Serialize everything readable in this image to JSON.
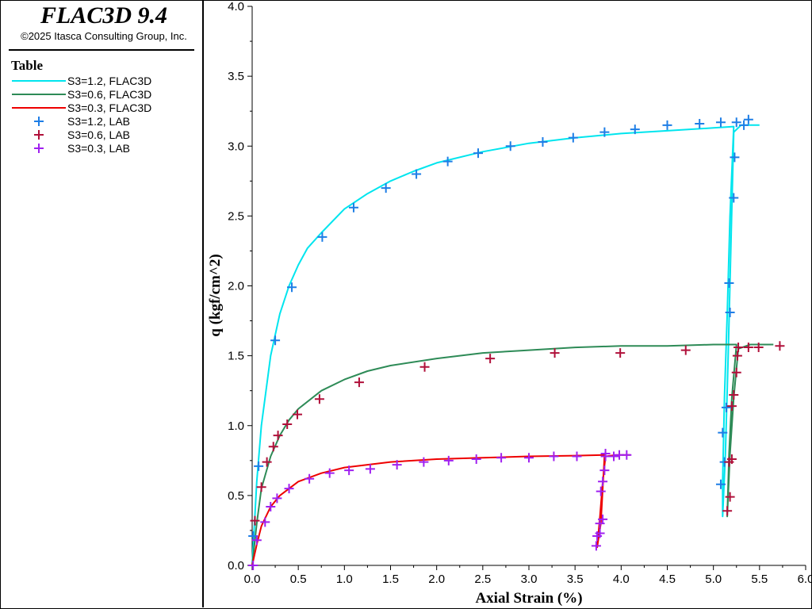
{
  "app": {
    "title": "FLAC3D 9.4",
    "copyright": "©2025 Itasca Consulting Group, Inc."
  },
  "legend": {
    "title": "Table",
    "items": [
      {
        "label": "S3=1.2, FLAC3D",
        "kind": "line",
        "color": "#00e5ee"
      },
      {
        "label": "S3=0.6, FLAC3D",
        "kind": "line",
        "color": "#2e8b57"
      },
      {
        "label": "S3=0.3, FLAC3D",
        "kind": "line",
        "color": "#ee0000"
      },
      {
        "label": "S3=1.2, LAB",
        "kind": "marker",
        "color": "#1e7ee6"
      },
      {
        "label": "S3=0.6, LAB",
        "kind": "marker",
        "color": "#b0103a"
      },
      {
        "label": "S3=0.3, LAB",
        "kind": "marker",
        "color": "#a020f0"
      }
    ]
  },
  "chart_data": {
    "type": "line",
    "title": "",
    "xlabel": "Axial Strain (%)",
    "ylabel": "q (kgf/cm^2)",
    "xlim": [
      0,
      6.0
    ],
    "ylim": [
      0,
      4.0
    ],
    "xticks": [
      "0.0",
      "0.5",
      "1.0",
      "1.5",
      "2.0",
      "2.5",
      "3.0",
      "3.5",
      "4.0",
      "4.5",
      "5.0",
      "5.5",
      "6.0"
    ],
    "yticks": [
      "0.0",
      "0.5",
      "1.0",
      "1.5",
      "2.0",
      "2.5",
      "3.0",
      "3.5",
      "4.0"
    ],
    "grid": false,
    "legend_position": "left-panel",
    "series": [
      {
        "name": "S3=1.2, FLAC3D",
        "kind": "line",
        "color": "#00e5ee",
        "points": [
          [
            0,
            0
          ],
          [
            0.05,
            0.6
          ],
          [
            0.1,
            1.0
          ],
          [
            0.2,
            1.5
          ],
          [
            0.3,
            1.8
          ],
          [
            0.4,
            2.0
          ],
          [
            0.5,
            2.15
          ],
          [
            0.6,
            2.27
          ],
          [
            0.75,
            2.38
          ],
          [
            1.0,
            2.55
          ],
          [
            1.25,
            2.66
          ],
          [
            1.5,
            2.75
          ],
          [
            1.75,
            2.82
          ],
          [
            2.0,
            2.88
          ],
          [
            2.5,
            2.96
          ],
          [
            3.0,
            3.02
          ],
          [
            3.5,
            3.06
          ],
          [
            4.0,
            3.09
          ],
          [
            4.5,
            3.11
          ],
          [
            5.0,
            3.13
          ],
          [
            5.22,
            3.14
          ],
          [
            5.18,
            2.5
          ],
          [
            5.15,
            1.8
          ],
          [
            5.12,
            1.2
          ],
          [
            5.1,
            0.6
          ],
          [
            5.1,
            0.35
          ],
          [
            5.13,
            0.8
          ],
          [
            5.16,
            1.5
          ],
          [
            5.19,
            2.3
          ],
          [
            5.22,
            3.1
          ],
          [
            5.3,
            3.15
          ],
          [
            5.5,
            3.15
          ]
        ]
      },
      {
        "name": "S3=0.6, FLAC3D",
        "kind": "line",
        "color": "#2e8b57",
        "points": [
          [
            0,
            0
          ],
          [
            0.05,
            0.3
          ],
          [
            0.1,
            0.55
          ],
          [
            0.2,
            0.78
          ],
          [
            0.3,
            0.93
          ],
          [
            0.4,
            1.04
          ],
          [
            0.5,
            1.12
          ],
          [
            0.75,
            1.25
          ],
          [
            1.0,
            1.33
          ],
          [
            1.25,
            1.39
          ],
          [
            1.5,
            1.43
          ],
          [
            2.0,
            1.48
          ],
          [
            2.5,
            1.52
          ],
          [
            3.0,
            1.54
          ],
          [
            3.5,
            1.56
          ],
          [
            4.0,
            1.57
          ],
          [
            4.5,
            1.57
          ],
          [
            5.0,
            1.58
          ],
          [
            5.25,
            1.58
          ],
          [
            5.2,
            1.2
          ],
          [
            5.17,
            0.8
          ],
          [
            5.15,
            0.35
          ],
          [
            5.18,
            0.8
          ],
          [
            5.22,
            1.2
          ],
          [
            5.27,
            1.55
          ],
          [
            5.4,
            1.58
          ],
          [
            5.65,
            1.58
          ]
        ]
      },
      {
        "name": "S3=0.3, FLAC3D",
        "kind": "line",
        "color": "#ee0000",
        "points": [
          [
            0,
            0
          ],
          [
            0.05,
            0.15
          ],
          [
            0.1,
            0.28
          ],
          [
            0.2,
            0.42
          ],
          [
            0.3,
            0.5
          ],
          [
            0.5,
            0.6
          ],
          [
            0.75,
            0.66
          ],
          [
            1.0,
            0.7
          ],
          [
            1.5,
            0.74
          ],
          [
            2.0,
            0.76
          ],
          [
            2.5,
            0.77
          ],
          [
            3.0,
            0.78
          ],
          [
            3.5,
            0.785
          ],
          [
            3.82,
            0.79
          ],
          [
            3.8,
            0.55
          ],
          [
            3.78,
            0.3
          ],
          [
            3.74,
            0.13
          ],
          [
            3.77,
            0.35
          ],
          [
            3.8,
            0.6
          ],
          [
            3.83,
            0.78
          ],
          [
            3.95,
            0.79
          ],
          [
            4.1,
            0.79
          ]
        ]
      },
      {
        "name": "S3=1.2, LAB",
        "kind": "marker",
        "color": "#1e7ee6",
        "points": [
          [
            0.01,
            0.21
          ],
          [
            0.07,
            0.71
          ],
          [
            0.25,
            1.61
          ],
          [
            0.43,
            1.99
          ],
          [
            0.76,
            2.35
          ],
          [
            1.1,
            2.56
          ],
          [
            1.45,
            2.7
          ],
          [
            1.78,
            2.8
          ],
          [
            2.12,
            2.89
          ],
          [
            2.45,
            2.95
          ],
          [
            2.8,
            3.0
          ],
          [
            3.15,
            3.03
          ],
          [
            3.48,
            3.06
          ],
          [
            3.82,
            3.1
          ],
          [
            4.15,
            3.12
          ],
          [
            4.5,
            3.15
          ],
          [
            4.85,
            3.16
          ],
          [
            5.08,
            3.17
          ],
          [
            5.25,
            3.17
          ],
          [
            5.33,
            3.15
          ],
          [
            5.38,
            3.19
          ],
          [
            5.23,
            2.92
          ],
          [
            5.22,
            2.63
          ],
          [
            5.17,
            2.02
          ],
          [
            5.18,
            1.81
          ],
          [
            5.14,
            1.13
          ],
          [
            5.1,
            0.95
          ],
          [
            5.12,
            0.74
          ],
          [
            5.08,
            0.58
          ]
        ]
      },
      {
        "name": "S3=0.6, LAB",
        "kind": "marker",
        "color": "#b0103a",
        "points": [
          [
            0.03,
            0.32
          ],
          [
            0.1,
            0.56
          ],
          [
            0.16,
            0.74
          ],
          [
            0.23,
            0.85
          ],
          [
            0.28,
            0.93
          ],
          [
            0.38,
            1.01
          ],
          [
            0.49,
            1.08
          ],
          [
            0.73,
            1.19
          ],
          [
            1.16,
            1.31
          ],
          [
            1.87,
            1.42
          ],
          [
            2.58,
            1.48
          ],
          [
            3.28,
            1.52
          ],
          [
            3.99,
            1.52
          ],
          [
            4.7,
            1.54
          ],
          [
            5.27,
            1.56
          ],
          [
            5.38,
            1.56
          ],
          [
            5.49,
            1.56
          ],
          [
            5.72,
            1.57
          ],
          [
            5.26,
            1.5
          ],
          [
            5.25,
            1.38
          ],
          [
            5.22,
            1.22
          ],
          [
            5.2,
            1.14
          ],
          [
            5.2,
            0.76
          ],
          [
            5.17,
            0.74
          ],
          [
            5.18,
            0.49
          ],
          [
            5.15,
            0.39
          ]
        ]
      },
      {
        "name": "S3=0.3, LAB",
        "kind": "marker",
        "color": "#a020f0",
        "points": [
          [
            0.01,
            0.0
          ],
          [
            0.05,
            0.18
          ],
          [
            0.14,
            0.31
          ],
          [
            0.2,
            0.42
          ],
          [
            0.27,
            0.48
          ],
          [
            0.4,
            0.55
          ],
          [
            0.62,
            0.62
          ],
          [
            0.84,
            0.66
          ],
          [
            1.05,
            0.68
          ],
          [
            1.28,
            0.69
          ],
          [
            1.57,
            0.72
          ],
          [
            1.86,
            0.74
          ],
          [
            2.13,
            0.75
          ],
          [
            2.43,
            0.76
          ],
          [
            2.7,
            0.77
          ],
          [
            3.0,
            0.77
          ],
          [
            3.27,
            0.78
          ],
          [
            3.52,
            0.78
          ],
          [
            3.83,
            0.78
          ],
          [
            3.83,
            0.8
          ],
          [
            3.92,
            0.78
          ],
          [
            3.98,
            0.79
          ],
          [
            4.06,
            0.79
          ],
          [
            3.82,
            0.68
          ],
          [
            3.8,
            0.6
          ],
          [
            3.78,
            0.53
          ],
          [
            3.8,
            0.33
          ],
          [
            3.77,
            0.3
          ],
          [
            3.77,
            0.23
          ],
          [
            3.74,
            0.21
          ],
          [
            3.73,
            0.14
          ]
        ]
      }
    ]
  }
}
